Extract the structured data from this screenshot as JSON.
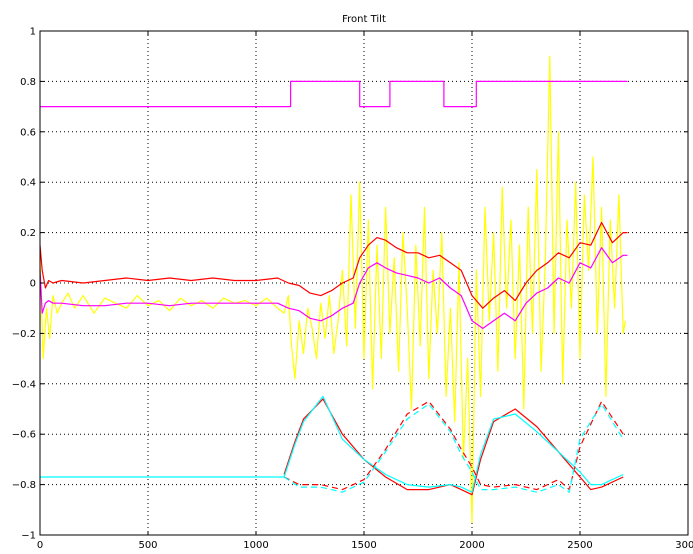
{
  "chart_data": {
    "type": "line",
    "title": "Front Tilt",
    "xlabel": "",
    "ylabel": "",
    "xlim": [
      0,
      3000
    ],
    "ylim": [
      -1,
      1
    ],
    "xticks": [
      0,
      500,
      1000,
      1500,
      2000,
      2500,
      3000
    ],
    "yticks": [
      -1,
      -0.8,
      -0.6,
      -0.4,
      -0.2,
      0,
      0.2,
      0.4,
      0.6,
      0.8,
      1
    ],
    "xtick_labels": [
      "0",
      "500",
      "1000",
      "1500",
      "2000",
      "2500",
      "3000"
    ],
    "ytick_labels": [
      "−1",
      "−0.8",
      "−0.6",
      "−0.4",
      "−0.2",
      "0",
      "0.2",
      "0.4",
      "0.6",
      "0.8",
      "1"
    ],
    "grid": true,
    "series": [
      {
        "color": "#ffff00",
        "style": "solid",
        "x": [
          0,
          15,
          30,
          45,
          60,
          80,
          100,
          130,
          160,
          200,
          250,
          300,
          350,
          400,
          450,
          500,
          550,
          600,
          650,
          700,
          750,
          800,
          850,
          900,
          950,
          1000,
          1050,
          1100,
          1130,
          1150,
          1165,
          1180,
          1200,
          1220,
          1240,
          1260,
          1280,
          1300,
          1320,
          1340,
          1360,
          1380,
          1400,
          1420,
          1440,
          1460,
          1480,
          1500,
          1520,
          1540,
          1560,
          1580,
          1600,
          1620,
          1640,
          1660,
          1680,
          1700,
          1720,
          1740,
          1760,
          1780,
          1800,
          1820,
          1840,
          1860,
          1880,
          1900,
          1920,
          1940,
          1960,
          1980,
          2000,
          2020,
          2040,
          2060,
          2080,
          2100,
          2120,
          2140,
          2160,
          2180,
          2200,
          2220,
          2240,
          2260,
          2280,
          2300,
          2320,
          2340,
          2360,
          2380,
          2400,
          2420,
          2440,
          2460,
          2480,
          2500,
          2520,
          2540,
          2560,
          2580,
          2600,
          2620,
          2640,
          2660,
          2680,
          2700,
          2710
        ],
        "y": [
          0.1,
          -0.3,
          -0.1,
          -0.22,
          -0.05,
          -0.12,
          -0.08,
          -0.04,
          -0.1,
          -0.05,
          -0.12,
          -0.06,
          -0.08,
          -0.1,
          -0.05,
          -0.09,
          -0.07,
          -0.11,
          -0.06,
          -0.09,
          -0.07,
          -0.1,
          -0.06,
          -0.08,
          -0.07,
          -0.09,
          -0.06,
          -0.1,
          -0.12,
          -0.05,
          -0.25,
          -0.38,
          -0.15,
          -0.28,
          -0.1,
          -0.18,
          -0.3,
          -0.08,
          -0.22,
          -0.05,
          -0.28,
          -0.15,
          0.05,
          -0.25,
          0.35,
          -0.18,
          0.4,
          -0.3,
          0.25,
          -0.42,
          0.15,
          -0.3,
          0.3,
          -0.2,
          0.1,
          -0.35,
          0.2,
          -0.1,
          -0.5,
          0.15,
          -0.25,
          0.3,
          -0.38,
          0.05,
          -0.2,
          0.2,
          -0.45,
          -0.1,
          -0.55,
          0.08,
          -0.7,
          -0.3,
          -0.95,
          0.05,
          -0.45,
          0.3,
          -0.15,
          0.2,
          -0.35,
          0.38,
          -0.1,
          0.25,
          -0.3,
          0.15,
          -0.5,
          0.3,
          -0.2,
          0.45,
          -0.35,
          0.1,
          0.9,
          -0.2,
          0.6,
          -0.4,
          0.25,
          -0.1,
          0.4,
          -0.3,
          0.35,
          0.05,
          0.5,
          -0.2,
          0.3,
          -0.45,
          0.25,
          -0.1,
          0.35,
          -0.2,
          -0.15
        ]
      },
      {
        "color": "#ff00ff",
        "style": "solid",
        "x": [
          0,
          1160,
          1160,
          1480,
          1480,
          1620,
          1620,
          1870,
          1870,
          2020,
          2020,
          2720
        ],
        "y": [
          0.7,
          0.7,
          0.8,
          0.8,
          0.7,
          0.7,
          0.8,
          0.8,
          0.7,
          0.7,
          0.8,
          0.8
        ]
      },
      {
        "color": "#ff0000",
        "style": "solid",
        "x": [
          0,
          10,
          25,
          40,
          60,
          100,
          200,
          300,
          400,
          500,
          600,
          700,
          800,
          900,
          1000,
          1100,
          1150,
          1200,
          1250,
          1300,
          1350,
          1400,
          1450,
          1480,
          1520,
          1560,
          1600,
          1650,
          1700,
          1750,
          1800,
          1850,
          1900,
          1950,
          2000,
          2050,
          2100,
          2150,
          2200,
          2250,
          2300,
          2350,
          2400,
          2450,
          2500,
          2550,
          2600,
          2650,
          2700,
          2720
        ],
        "y": [
          0.15,
          0.05,
          -0.02,
          0.01,
          0.0,
          0.01,
          0.0,
          0.01,
          0.02,
          0.01,
          0.02,
          0.01,
          0.02,
          0.01,
          0.01,
          0.02,
          0.0,
          -0.01,
          -0.04,
          -0.05,
          -0.03,
          0.0,
          0.02,
          0.1,
          0.15,
          0.18,
          0.17,
          0.14,
          0.12,
          0.12,
          0.1,
          0.11,
          0.08,
          0.05,
          -0.05,
          -0.1,
          -0.06,
          -0.03,
          -0.07,
          0.0,
          0.05,
          0.08,
          0.12,
          0.1,
          0.16,
          0.15,
          0.24,
          0.16,
          0.2,
          0.2
        ]
      },
      {
        "color": "#ff00ff",
        "style": "solid",
        "x": [
          0,
          10,
          25,
          40,
          60,
          100,
          200,
          300,
          400,
          500,
          600,
          700,
          800,
          900,
          1000,
          1100,
          1150,
          1200,
          1250,
          1300,
          1350,
          1400,
          1450,
          1480,
          1520,
          1560,
          1600,
          1650,
          1700,
          1750,
          1800,
          1850,
          1900,
          1950,
          2000,
          2050,
          2100,
          2150,
          2200,
          2250,
          2300,
          2350,
          2400,
          2450,
          2500,
          2550,
          2600,
          2650,
          2700,
          2720
        ],
        "y": [
          0.05,
          -0.12,
          -0.08,
          -0.07,
          -0.08,
          -0.08,
          -0.09,
          -0.09,
          -0.08,
          -0.08,
          -0.09,
          -0.08,
          -0.08,
          -0.08,
          -0.08,
          -0.08,
          -0.1,
          -0.11,
          -0.14,
          -0.15,
          -0.13,
          -0.1,
          -0.08,
          0.0,
          0.06,
          0.08,
          0.06,
          0.04,
          0.03,
          0.02,
          0.0,
          0.02,
          -0.02,
          -0.05,
          -0.15,
          -0.18,
          -0.15,
          -0.12,
          -0.15,
          -0.08,
          -0.04,
          -0.02,
          0.02,
          0.0,
          0.08,
          0.06,
          0.14,
          0.08,
          0.11,
          0.11
        ]
      },
      {
        "color": "#ff0000",
        "style": "solid",
        "x": [
          1130,
          1180,
          1220,
          1310,
          1400,
          1500,
          1600,
          1700,
          1800,
          1900,
          1950,
          2000,
          2040,
          2100,
          2200,
          2300,
          2400,
          2500,
          2550,
          2600,
          2700
        ],
        "y": [
          -0.76,
          -0.63,
          -0.54,
          -0.46,
          -0.6,
          -0.7,
          -0.77,
          -0.82,
          -0.82,
          -0.8,
          -0.82,
          -0.84,
          -0.7,
          -0.55,
          -0.5,
          -0.57,
          -0.67,
          -0.77,
          -0.82,
          -0.81,
          -0.77
        ]
      },
      {
        "color": "#00ffff",
        "style": "solid",
        "x": [
          0,
          1130,
          1180,
          1220,
          1310,
          1400,
          1500,
          1600,
          1700,
          1800,
          1900,
          1950,
          2000,
          2040,
          2100,
          2200,
          2300,
          2400,
          2500,
          2550,
          2600,
          2700
        ],
        "y": [
          -0.77,
          -0.77,
          -0.64,
          -0.55,
          -0.45,
          -0.62,
          -0.7,
          -0.76,
          -0.8,
          -0.81,
          -0.8,
          -0.81,
          -0.83,
          -0.68,
          -0.54,
          -0.52,
          -0.59,
          -0.67,
          -0.75,
          -0.8,
          -0.8,
          -0.76
        ]
      },
      {
        "color": "#ff0000",
        "style": "dashed",
        "x": [
          1130,
          1200,
          1300,
          1400,
          1500,
          1600,
          1700,
          1800,
          1900,
          1950,
          2000,
          2040,
          2100,
          2200,
          2300,
          2400,
          2450,
          2500,
          2600,
          2700
        ],
        "y": [
          -0.77,
          -0.8,
          -0.8,
          -0.82,
          -0.78,
          -0.66,
          -0.52,
          -0.47,
          -0.58,
          -0.66,
          -0.73,
          -0.8,
          -0.81,
          -0.8,
          -0.82,
          -0.78,
          -0.82,
          -0.65,
          -0.47,
          -0.6
        ]
      },
      {
        "color": "#00ffff",
        "style": "dashed",
        "x": [
          1130,
          1200,
          1300,
          1400,
          1500,
          1600,
          1700,
          1800,
          1900,
          1950,
          2000,
          2040,
          2100,
          2200,
          2300,
          2400,
          2450,
          2500,
          2600,
          2700
        ],
        "y": [
          -0.77,
          -0.81,
          -0.81,
          -0.83,
          -0.79,
          -0.67,
          -0.54,
          -0.48,
          -0.59,
          -0.68,
          -0.75,
          -0.82,
          -0.82,
          -0.81,
          -0.83,
          -0.8,
          -0.83,
          -0.62,
          -0.48,
          -0.62
        ]
      }
    ]
  }
}
